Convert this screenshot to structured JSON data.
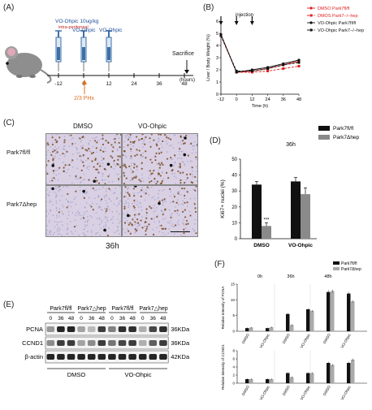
{
  "panelA": {
    "label": "(A)",
    "dose1": "VO-Ohpic 10ug/kg",
    "dose1_sub": "intra-peritoneal",
    "dose2": "VO-Ohpic",
    "dose3": "VO-Ohpic",
    "sacrifice": "Sacrifice",
    "ticks": [
      "-12",
      "0",
      "12",
      "24",
      "36",
      "48"
    ],
    "unit": "(hours)",
    "phx": "2/3 PHx",
    "colors": {
      "syringe": "#3d6fa8",
      "phx": "#e07020"
    }
  },
  "panelB": {
    "label": "(B)",
    "annotation": "injection",
    "legend": [
      "DMSO Park7fl/fl",
      "DMOS Park7−/−hep",
      "VO-Ohpic Park7fl/fl",
      "VO-Ohpic Park7−/−hep"
    ],
    "colors": {
      "dmso": "#e02020",
      "vo": "#111111"
    }
  },
  "panelC": {
    "label": "(C)",
    "col1": "DMSO",
    "col2": "VO-Ohpic",
    "row1": "Park7fl/fl",
    "row2": "Park7Δhep",
    "caption": "36h"
  },
  "panelD": {
    "label": "(D)",
    "time": "36h",
    "legend": [
      "Park7fl/fl",
      "Park7Δhep"
    ],
    "sig": "***"
  },
  "panelE": {
    "label": "(E)",
    "groups": [
      "Park7fl/fl",
      "Park7△hep",
      "Park7fl/fl",
      "Park7△hep"
    ],
    "times": [
      "0",
      "36",
      "48",
      "0",
      "36",
      "48",
      "0",
      "36",
      "48",
      "0",
      "36",
      "48"
    ],
    "rows": [
      {
        "name": "PCNA",
        "size": "36KDa"
      },
      {
        "name": "CCND1",
        "size": "36KDa"
      },
      {
        "name": "β-actin",
        "size": "42KDa"
      }
    ],
    "treat1": "DMSO",
    "treat2": "VO-Ohpic"
  },
  "panelF": {
    "label": "(F)",
    "legend": [
      "Park7fl/fl",
      "Park7Δhep"
    ],
    "times": [
      "0h",
      "36h",
      "48h"
    ],
    "top_ylabel": "Relative intensity of PCNA",
    "bottom_ylabel": "Relative intensity of CCND1",
    "xcats": [
      "DMSO",
      "VO-Ohpic",
      "DMSO",
      "VO-Ohpic",
      "DMSO",
      "VO-Ohpic"
    ]
  },
  "chart_data": [
    {
      "id": "B",
      "type": "line",
      "ylabel": "Liver / Body Weight (%)",
      "xlabel": "Time (h)",
      "x": [
        -12,
        0,
        12,
        24,
        36,
        48
      ],
      "xticks": [
        "-12",
        "0",
        "12",
        "24",
        "36",
        "48"
      ],
      "yticks": [
        "0",
        "1",
        "2",
        "3",
        "4",
        "5",
        "6"
      ],
      "ylim": [
        0,
        6
      ],
      "series": [
        {
          "name": "DMSO Park7fl/fl",
          "values": [
            4.9,
            1.8,
            1.9,
            2.1,
            2.4,
            2.7
          ]
        },
        {
          "name": "DMOS Park7−/−hep",
          "values": [
            4.8,
            1.8,
            1.8,
            1.9,
            2.1,
            2.3
          ]
        },
        {
          "name": "VO-Ohpic Park7fl/fl",
          "values": [
            4.9,
            1.8,
            2.0,
            2.2,
            2.5,
            2.8
          ]
        },
        {
          "name": "VO-Ohpic Park7−/−hep",
          "values": [
            4.8,
            1.9,
            1.9,
            2.1,
            2.4,
            2.6
          ]
        }
      ]
    },
    {
      "id": "D",
      "type": "bar",
      "title": "36h",
      "ylabel": "Ki67+ nuclei (%)",
      "categories": [
        "DMSO",
        "VO-Ohpic"
      ],
      "yticks": [
        "0",
        "10",
        "20",
        "30",
        "40",
        "50"
      ],
      "ylim": [
        0,
        50
      ],
      "series": [
        {
          "name": "Park7fl/fl",
          "values": [
            34,
            36
          ],
          "errors": [
            2,
            2.5
          ]
        },
        {
          "name": "Park7Δhep",
          "values": [
            8,
            28
          ],
          "errors": [
            2,
            4
          ]
        }
      ]
    },
    {
      "id": "F-top",
      "type": "bar",
      "ylabel": "Relative intensity of PCNA",
      "categories": [
        "DMSO",
        "VO-Ohpic",
        "DMSO",
        "VO-Ohpic",
        "DMSO",
        "VO-Ohpic"
      ],
      "yticks": [
        "0",
        "5",
        "10",
        "15"
      ],
      "ylim": [
        0,
        15
      ],
      "series": [
        {
          "name": "Park7fl/fl",
          "values": [
            1.0,
            1.0,
            5.5,
            7.0,
            12.5,
            12.0
          ],
          "errors": [
            0.2,
            0.2,
            0.3,
            0.3,
            0.6,
            0.5
          ]
        },
        {
          "name": "Park7Δhep",
          "values": [
            1.2,
            1.3,
            2.0,
            6.5,
            12.8,
            9.5
          ],
          "errors": [
            0.2,
            0.2,
            0.3,
            0.3,
            0.5,
            0.4
          ]
        }
      ]
    },
    {
      "id": "F-bottom",
      "type": "bar",
      "ylabel": "Relative intensity of CCND1",
      "categories": [
        "DMSO",
        "VO-Ohpic",
        "DMSO",
        "VO-Ohpic",
        "DMSO",
        "VO-Ohpic"
      ],
      "yticks": [
        "0",
        "2",
        "4",
        "6",
        "8"
      ],
      "ylim": [
        0,
        8
      ],
      "series": [
        {
          "name": "Park7fl/fl",
          "values": [
            1.0,
            1.0,
            2.5,
            2.5,
            5.0,
            5.0
          ],
          "errors": [
            0.2,
            0.2,
            0.2,
            0.2,
            0.3,
            0.3
          ]
        },
        {
          "name": "Park7Δhep",
          "values": [
            1.0,
            1.0,
            1.5,
            2.5,
            4.5,
            5.8
          ],
          "errors": [
            0.2,
            0.2,
            0.2,
            0.2,
            0.3,
            0.3
          ]
        }
      ]
    }
  ]
}
